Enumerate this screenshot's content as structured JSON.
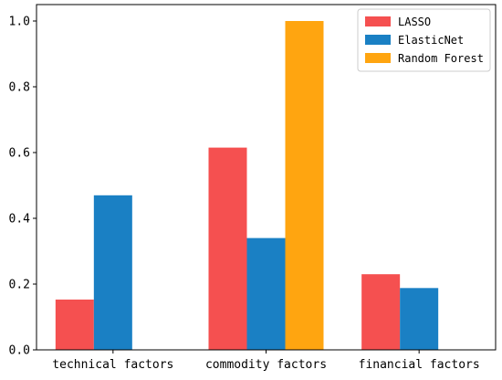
{
  "chart_data": {
    "type": "bar",
    "categories": [
      "technical factors",
      "commodity factors",
      "financial factors"
    ],
    "series": [
      {
        "name": "LASSO",
        "values": [
          0.153,
          0.615,
          0.23
        ],
        "color": "#f55050"
      },
      {
        "name": "ElasticNet",
        "values": [
          0.47,
          0.34,
          0.188
        ],
        "color": "#1a80c4"
      },
      {
        "name": "Random Forest",
        "values": [
          0.0,
          1.0,
          0.0
        ],
        "color": "#ffa510"
      }
    ],
    "yticks": [
      "0.0",
      "0.2",
      "0.4",
      "0.6",
      "0.8",
      "1.0"
    ],
    "ylim": [
      0,
      1.05
    ],
    "title": "",
    "xlabel": "",
    "ylabel": "",
    "legend_position": "top-right",
    "grid": false
  }
}
